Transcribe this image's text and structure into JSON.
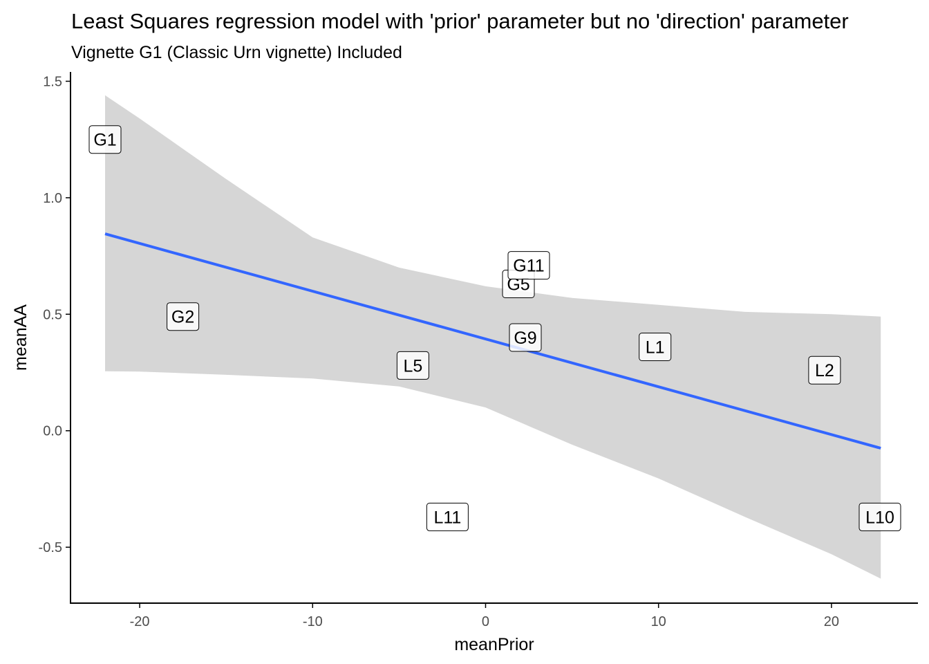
{
  "chart_data": {
    "type": "scatter",
    "title": "Least Squares regression model with 'prior' parameter but no 'direction' parameter",
    "subtitle": "Vignette G1 (Classic Urn vignette) Included",
    "xlabel": "meanPrior",
    "ylabel": "meanAA",
    "xlim": [
      -24,
      25
    ],
    "ylim": [
      -0.74,
      1.54
    ],
    "x_ticks": [
      -20,
      -10,
      0,
      10,
      20
    ],
    "x_tick_labels": [
      "-20",
      "-10",
      "0",
      "10",
      "20"
    ],
    "y_ticks": [
      -0.5,
      0.0,
      0.5,
      1.0,
      1.5
    ],
    "y_tick_labels": [
      "-0.5",
      "0.0",
      "0.5",
      "1.0",
      "1.5"
    ],
    "grid": false,
    "points": [
      {
        "label": "G1",
        "x": -22.0,
        "y": 1.25
      },
      {
        "label": "G2",
        "x": -17.5,
        "y": 0.49
      },
      {
        "label": "L5",
        "x": -4.2,
        "y": 0.28
      },
      {
        "label": "L11",
        "x": -2.2,
        "y": -0.37
      },
      {
        "label": "G9",
        "x": 2.3,
        "y": 0.4
      },
      {
        "label": "G5",
        "x": 1.9,
        "y": 0.63
      },
      {
        "label": "G11",
        "x": 2.5,
        "y": 0.71
      },
      {
        "label": "L1",
        "x": 9.8,
        "y": 0.36
      },
      {
        "label": "L2",
        "x": 19.6,
        "y": 0.26
      },
      {
        "label": "L10",
        "x": 22.8,
        "y": -0.37
      }
    ],
    "regression": {
      "method": "lm",
      "line": [
        {
          "x": -22.0,
          "y": 0.845
        },
        {
          "x": 22.85,
          "y": -0.075
        }
      ],
      "confidence_band": {
        "x": [
          -22.0,
          -20.0,
          -15.0,
          -10.0,
          -5.0,
          0.0,
          5.0,
          10.0,
          15.0,
          20.0,
          22.85
        ],
        "lower": [
          0.255,
          0.254,
          0.24,
          0.224,
          0.19,
          0.1,
          -0.06,
          -0.205,
          -0.37,
          -0.53,
          -0.635
        ],
        "upper": [
          1.44,
          1.34,
          1.08,
          0.83,
          0.7,
          0.62,
          0.57,
          0.54,
          0.51,
          0.5,
          0.49
        ]
      }
    },
    "colors": {
      "line": "#3366FF",
      "band": "#D6D6D6",
      "axis": "#000000",
      "tick_label": "#4D4D4D",
      "label_fill": "#FFFFFF",
      "label_border": "#000000"
    }
  }
}
